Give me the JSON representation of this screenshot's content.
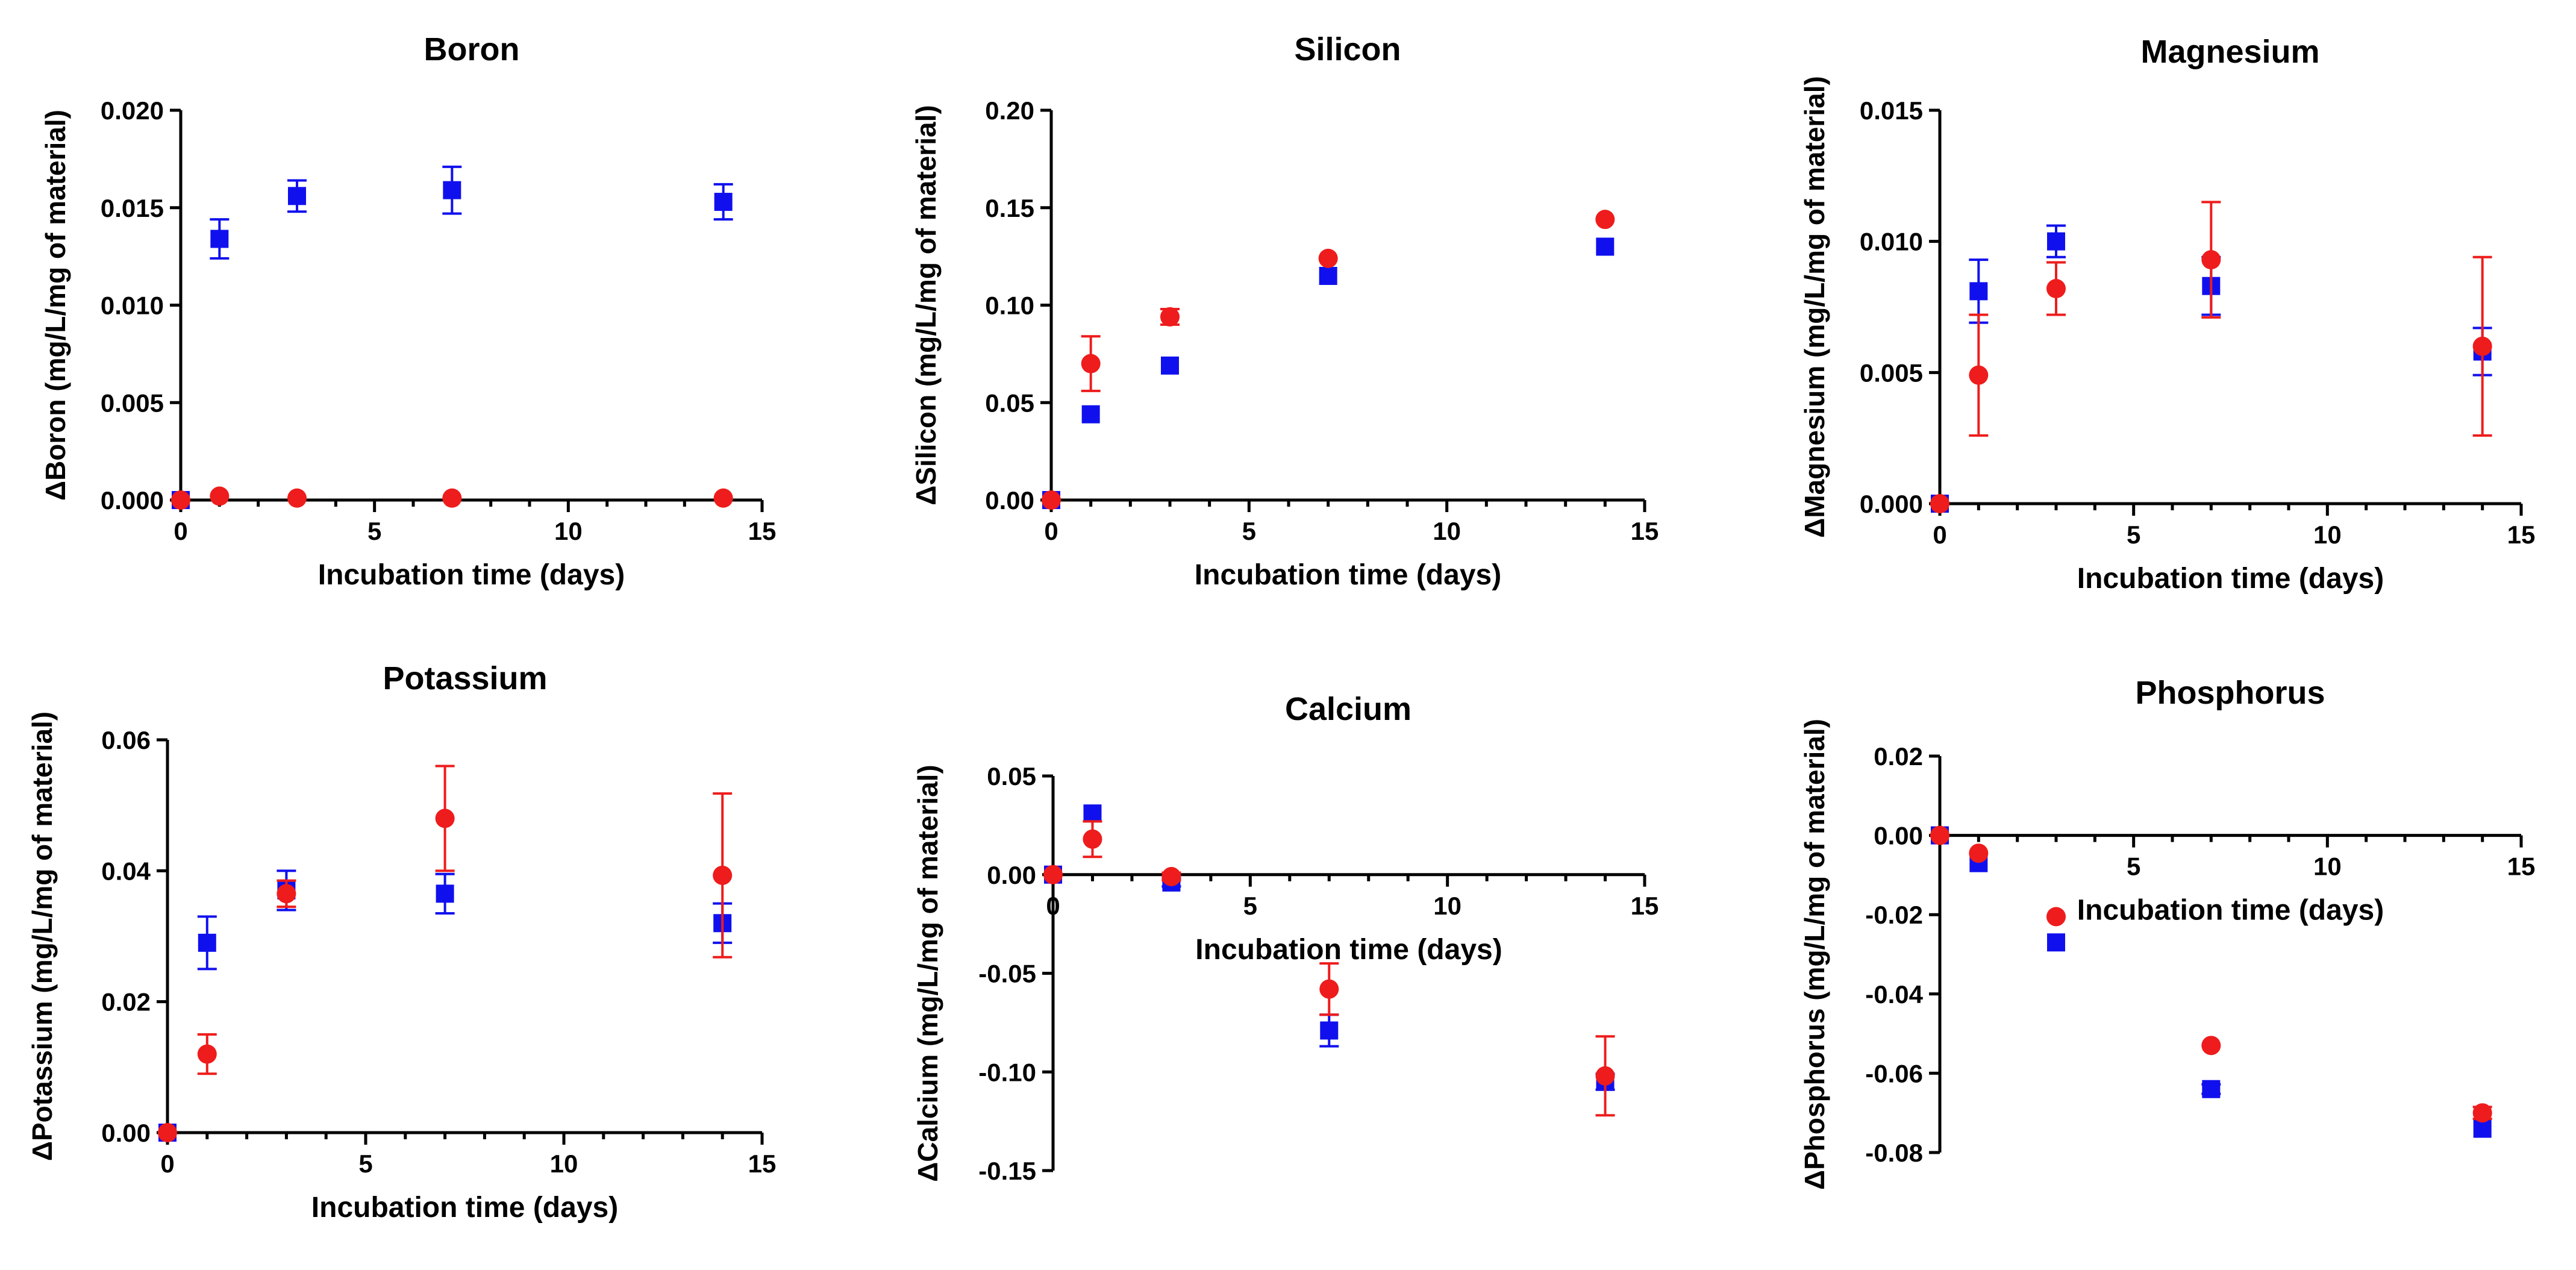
{
  "figure": {
    "series_colors": {
      "blue": "#1010ee",
      "red": "#ee1c1c"
    }
  },
  "chart_data": [
    {
      "type": "scatter",
      "title": "Boron",
      "xlabel": "Incubation time (days)",
      "ylabel": "ΔBoron (mg/L/mg of material)",
      "xlim": [
        0,
        15
      ],
      "ylim": [
        0,
        0.02
      ],
      "xticks": [
        "0",
        "5",
        "10",
        "15"
      ],
      "yticks": [
        "0.000",
        "0.005",
        "0.010",
        "0.015",
        "0.020"
      ],
      "series": [
        {
          "name": "blue squares",
          "marker": "square",
          "color": "#1010ee",
          "x": [
            0,
            1,
            3,
            7,
            14
          ],
          "y": [
            0.0,
            0.0134,
            0.0156,
            0.0159,
            0.0153
          ],
          "err": [
            0,
            0.001,
            0.0008,
            0.0012,
            0.0009
          ]
        },
        {
          "name": "red circles",
          "marker": "circle",
          "color": "#ee1c1c",
          "x": [
            0,
            1,
            3,
            7,
            14
          ],
          "y": [
            0.0,
            0.0002,
            0.0001,
            0.0001,
            0.0001
          ],
          "err": [
            0,
            0,
            0,
            0,
            0
          ]
        }
      ]
    },
    {
      "type": "scatter",
      "title": "Silicon",
      "xlabel": "Incubation time (days)",
      "ylabel": "ΔSilicon (mg/L/mg of material)",
      "xlim": [
        0,
        15
      ],
      "ylim": [
        0,
        0.2
      ],
      "xticks": [
        "0",
        "5",
        "10",
        "15"
      ],
      "yticks": [
        "0.00",
        "0.05",
        "0.10",
        "0.15",
        "0.20"
      ],
      "series": [
        {
          "name": "blue squares",
          "marker": "square",
          "color": "#1010ee",
          "x": [
            0,
            1,
            3,
            7,
            14
          ],
          "y": [
            0.0,
            0.044,
            0.069,
            0.115,
            0.13
          ],
          "err": [
            0,
            0,
            0,
            0,
            0
          ]
        },
        {
          "name": "red circles",
          "marker": "circle",
          "color": "#ee1c1c",
          "x": [
            0,
            1,
            3,
            7,
            14
          ],
          "y": [
            0.0,
            0.07,
            0.094,
            0.124,
            0.144
          ],
          "err": [
            0,
            0.014,
            0.004,
            0,
            0
          ]
        }
      ]
    },
    {
      "type": "scatter",
      "title": "Magnesium",
      "xlabel": "Incubation time (days)",
      "ylabel": "ΔMagnesium (mg/L/mg of material)",
      "xlim": [
        0,
        15
      ],
      "ylim": [
        0,
        0.015
      ],
      "xticks": [
        "0",
        "5",
        "10",
        "15"
      ],
      "yticks": [
        "0.000",
        "0.005",
        "0.010",
        "0.015"
      ],
      "series": [
        {
          "name": "blue squares",
          "marker": "square",
          "color": "#1010ee",
          "x": [
            0,
            1,
            3,
            7,
            14
          ],
          "y": [
            0.0,
            0.0081,
            0.01,
            0.0083,
            0.0058
          ],
          "err": [
            0,
            0.0012,
            0.0006,
            0.0011,
            0.0009
          ]
        },
        {
          "name": "red circles",
          "marker": "circle",
          "color": "#ee1c1c",
          "x": [
            0,
            1,
            3,
            7,
            14
          ],
          "y": [
            0.0,
            0.0049,
            0.0082,
            0.0093,
            0.006
          ],
          "err": [
            0,
            0.0023,
            0.001,
            0.0022,
            0.0034
          ]
        }
      ]
    },
    {
      "type": "scatter",
      "title": "Potassium",
      "xlabel": "Incubation time (days)",
      "ylabel": "ΔPotassium (mg/L/mg of material)",
      "xlim": [
        0,
        15
      ],
      "ylim": [
        0,
        0.06
      ],
      "xticks": [
        "0",
        "5",
        "10",
        "15"
      ],
      "yticks": [
        "0.00",
        "0.02",
        "0.04",
        "0.06"
      ],
      "series": [
        {
          "name": "blue squares",
          "marker": "square",
          "color": "#1010ee",
          "x": [
            0,
            1,
            3,
            7,
            14
          ],
          "y": [
            0.0,
            0.029,
            0.037,
            0.0365,
            0.032
          ],
          "err": [
            0,
            0.004,
            0.003,
            0.003,
            0.003
          ]
        },
        {
          "name": "red circles",
          "marker": "circle",
          "color": "#ee1c1c",
          "x": [
            0,
            1,
            3,
            7,
            14
          ],
          "y": [
            0.0,
            0.012,
            0.0365,
            0.048,
            0.0393
          ],
          "err": [
            0,
            0.003,
            0.002,
            0.008,
            0.0125
          ]
        }
      ]
    },
    {
      "type": "scatter",
      "title": "Calcium",
      "xlabel": "Incubation time (days)",
      "ylabel": "ΔCalcium (mg/L/mg of material)",
      "xlim": [
        0,
        15
      ],
      "ylim": [
        -0.15,
        0.05
      ],
      "xticks": [
        "0",
        "5",
        "10",
        "15"
      ],
      "yticks": [
        "-0.15",
        "-0.10",
        "-0.05",
        "0.00",
        "0.05"
      ],
      "series": [
        {
          "name": "blue squares",
          "marker": "square",
          "color": "#1010ee",
          "x": [
            0,
            1,
            3,
            7,
            14
          ],
          "y": [
            0.0,
            0.031,
            -0.004,
            -0.079,
            -0.105
          ],
          "err": [
            0,
            0,
            0.002,
            0.008,
            0.004
          ]
        },
        {
          "name": "red circles",
          "marker": "circle",
          "color": "#ee1c1c",
          "x": [
            0,
            1,
            3,
            7,
            14
          ],
          "y": [
            0.0,
            0.018,
            -0.001,
            -0.058,
            -0.102
          ],
          "err": [
            0,
            0.009,
            0.002,
            0.013,
            0.02
          ]
        }
      ]
    },
    {
      "type": "scatter",
      "title": "Phosphorus",
      "xlabel": "Incubation time (days)",
      "ylabel": "ΔPhosphorus (mg/L/mg of material)",
      "xlim": [
        0,
        15
      ],
      "ylim": [
        -0.08,
        0.02
      ],
      "xticks": [
        "5",
        "10",
        "15"
      ],
      "yticks": [
        "-0.08",
        "-0.06",
        "-0.04",
        "-0.02",
        "0.00",
        "0.02"
      ],
      "series": [
        {
          "name": "blue squares",
          "marker": "square",
          "color": "#1010ee",
          "x": [
            0,
            1,
            3,
            7,
            14
          ],
          "y": [
            0.0,
            -0.007,
            -0.027,
            -0.064,
            -0.074
          ],
          "err": [
            0,
            0,
            0,
            0.0012,
            0
          ]
        },
        {
          "name": "red circles",
          "marker": "circle",
          "color": "#ee1c1c",
          "x": [
            0,
            1,
            3,
            7,
            14
          ],
          "y": [
            0.0,
            -0.0045,
            -0.0205,
            -0.053,
            -0.07
          ],
          "err": [
            0,
            0,
            0,
            0,
            0.0015
          ]
        }
      ]
    }
  ]
}
